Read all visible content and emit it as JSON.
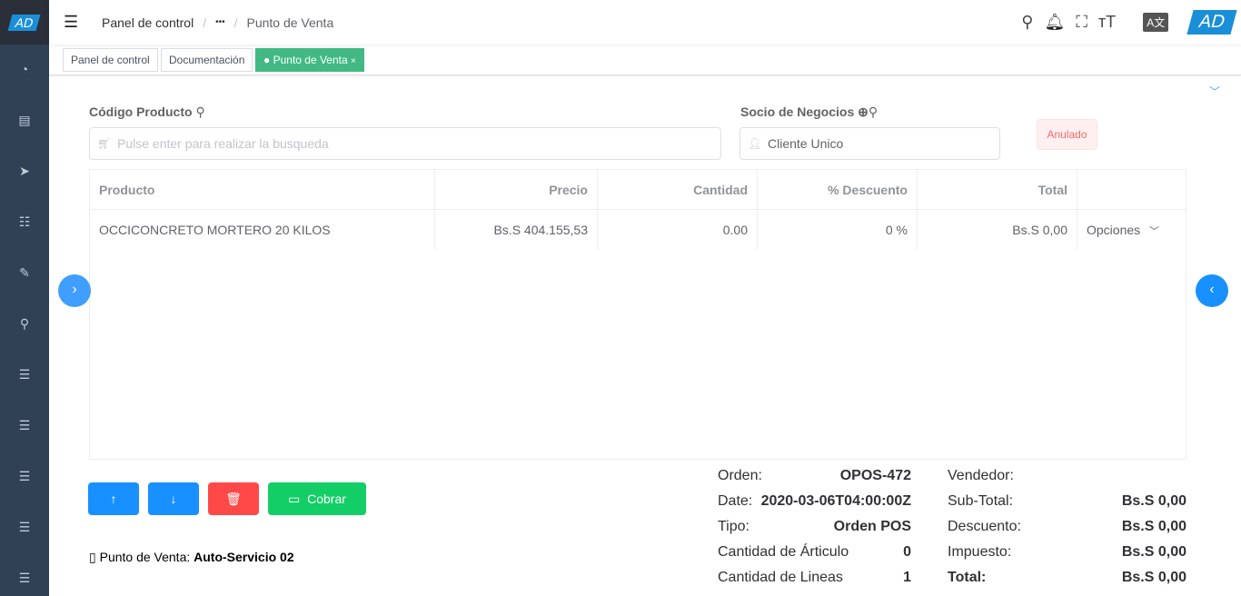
{
  "brand": {
    "logo": "AD",
    "accent": "#1890ff"
  },
  "sidebar": {
    "icons": [
      "dashboard-icon",
      "document-icon",
      "send-icon",
      "tree-table-icon",
      "edit-doc-icon",
      "search-icon",
      "list-icon",
      "list-icon",
      "list-icon",
      "list-icon",
      "list-icon"
    ]
  },
  "header": {
    "breadcrumb": [
      "Panel de control",
      "•••",
      "Punto de Venta"
    ],
    "avatar": "AD"
  },
  "tabs": [
    {
      "label": "Panel de control"
    },
    {
      "label": "Documentación"
    },
    {
      "label": "Punto de Venta",
      "active": true,
      "close": "×"
    }
  ],
  "form": {
    "product_label": "Código Producto",
    "product_placeholder": "Pulse enter para realizar la busqueda",
    "partner_label": "Socio de Negocios",
    "partner_value": "Cliente Unico",
    "status": "Anulado"
  },
  "table": {
    "headers": [
      "Producto",
      "Precio",
      "Cantidad",
      "% Descuento",
      "Total",
      ""
    ],
    "rows": [
      {
        "product": "OCCICONCRETO MORTERO 20 KILOS",
        "price": "Bs.S 404.155,53",
        "qty": "0.00",
        "discount": "0 %",
        "total": "Bs.S 0,00",
        "options": "Opciones"
      }
    ]
  },
  "actions": {
    "charge": "Cobrar"
  },
  "pos": {
    "label": "Punto de Venta:",
    "value": "Auto-Servicio 02"
  },
  "summary": {
    "left": [
      {
        "label": "Orden:",
        "value": "OPOS-472"
      },
      {
        "label": "Date:",
        "value": "2020-03-06T04:00:00Z"
      },
      {
        "label": "Tipo:",
        "value": "Orden POS"
      },
      {
        "label": "Cantidad de Árticulo",
        "value": "0"
      },
      {
        "label": "Cantidad de Lineas",
        "value": "1"
      }
    ],
    "right": [
      {
        "label": "Vendedor:",
        "value": ""
      },
      {
        "label": "Sub-Total:",
        "value": "Bs.S 0,00"
      },
      {
        "label": "Descuento:",
        "value": "Bs.S 0,00"
      },
      {
        "label": "Impuesto:",
        "value": "Bs.S 0,00"
      },
      {
        "label": "Total:",
        "value": "Bs.S 0,00"
      }
    ]
  }
}
